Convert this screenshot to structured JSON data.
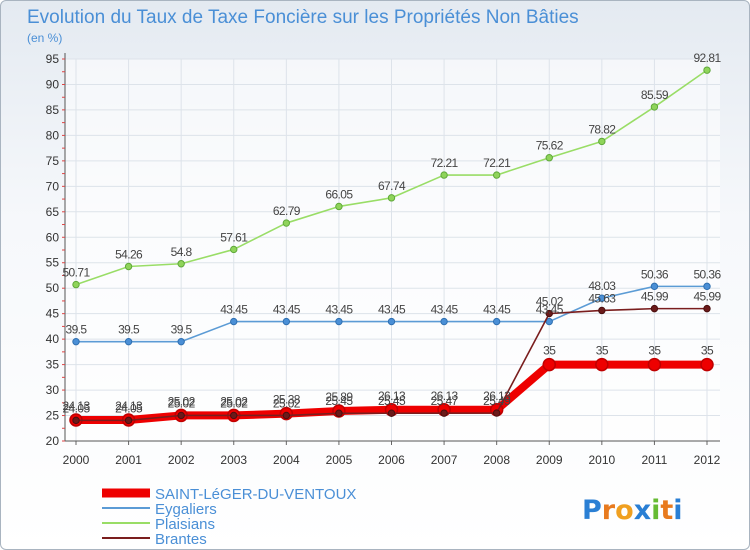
{
  "chart_data": {
    "type": "line",
    "title": "Evolution du Taux de Taxe Foncière sur les Propriétés Non Bâties",
    "unit_label": "(en %)",
    "categories": [
      "2000",
      "2001",
      "2002",
      "2003",
      "2004",
      "2005",
      "2006",
      "2007",
      "2008",
      "2009",
      "2010",
      "2011",
      "2012"
    ],
    "ylim": [
      20,
      95
    ],
    "yticks": [
      20,
      25,
      30,
      35,
      40,
      45,
      50,
      55,
      60,
      65,
      70,
      75,
      80,
      85,
      90,
      95
    ],
    "grid": true,
    "legend_position": "bottom-left",
    "series": [
      {
        "name": "SAINT-LéGER-DU-VENTOUX",
        "color": "#ee0000",
        "values": [
          24.13,
          24.13,
          25.02,
          25.02,
          25.38,
          25.89,
          26.13,
          26.13,
          26.13,
          35,
          35,
          35,
          35
        ],
        "labels": [
          "24.13",
          "24.13",
          "25.02",
          "25.02",
          "25.38",
          "25.89",
          "26.13",
          "26.13",
          "26.13",
          "35",
          "35",
          "35",
          "35"
        ]
      },
      {
        "name": "Eygaliers",
        "color": "#5b9bd5",
        "values": [
          39.5,
          39.5,
          39.5,
          43.45,
          43.45,
          43.45,
          43.45,
          43.45,
          43.45,
          43.45,
          48.03,
          50.36,
          50.36
        ],
        "labels": [
          "39.5",
          "39.5",
          "39.5",
          "43.45",
          "43.45",
          "43.45",
          "43.45",
          "43.45",
          "43.45",
          "43.45",
          "48.03",
          "50.36",
          "50.36"
        ]
      },
      {
        "name": "Plaisians",
        "color": "#99dd66",
        "values": [
          50.71,
          54.26,
          54.8,
          57.61,
          62.79,
          66.05,
          67.74,
          72.21,
          72.21,
          75.62,
          78.82,
          85.59,
          92.81
        ],
        "labels": [
          "50.71",
          "54.26",
          "54.8",
          "57.61",
          "62.79",
          "66.05",
          "67.74",
          "72.21",
          "72.21",
          "75.62",
          "78.82",
          "85.59",
          "92.81"
        ]
      },
      {
        "name": "Brantes",
        "color": "#7a1e1e",
        "values": [
          24.05,
          24.05,
          25.02,
          25.02,
          25.02,
          25.45,
          25.45,
          25.47,
          25.49,
          45.02,
          45.63,
          45.99,
          45.99
        ],
        "labels": [
          "24.05",
          "24.05",
          "25.02",
          "25.02",
          "25.02",
          "25.45",
          "25.45",
          "25.47",
          "25.49",
          "45.02",
          "45.63",
          "45.99",
          "45.99"
        ]
      }
    ]
  },
  "logo": {
    "text": "Proxiti",
    "colors": [
      "#2a7fd4",
      "#e87a1e",
      "#f0a020",
      "#2a7fd4",
      "#66bb33",
      "#e87a1e",
      "#2a7fd4"
    ]
  }
}
